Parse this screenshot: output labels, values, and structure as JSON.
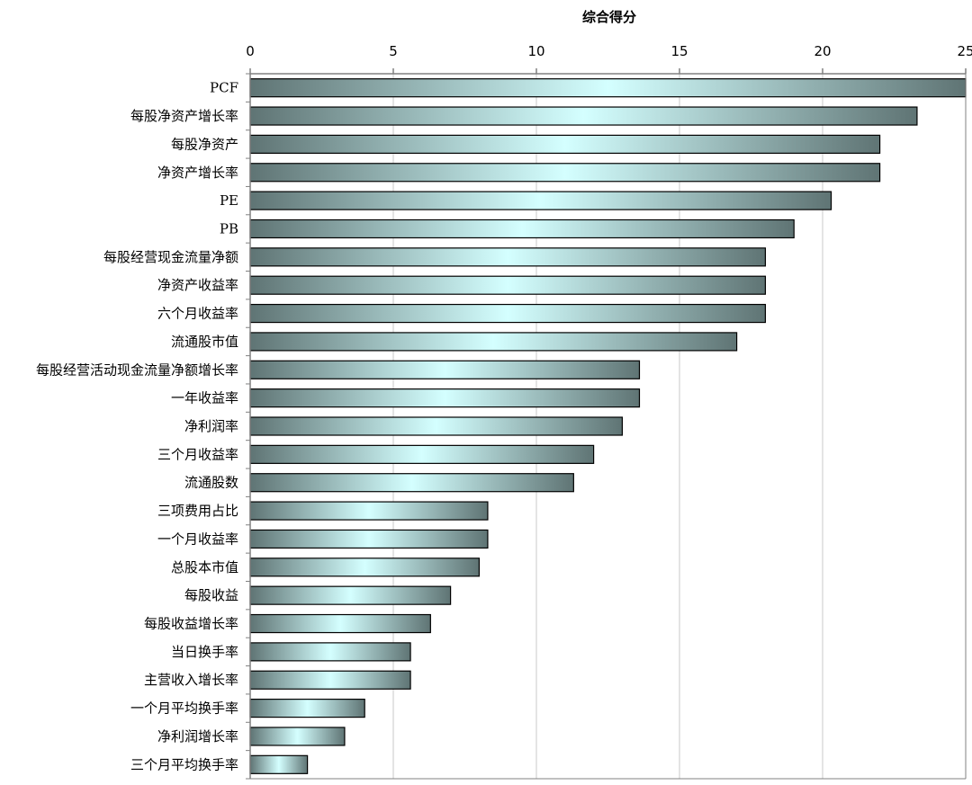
{
  "chart_data": {
    "type": "bar",
    "orientation": "horizontal",
    "title": "",
    "xlabel": "综合得分",
    "ylabel": "",
    "xlim": [
      0,
      25
    ],
    "ticks": [
      0,
      5,
      10,
      15,
      20,
      25
    ],
    "tick_labels": [
      "0",
      "5",
      "10",
      "15",
      "20",
      "25"
    ],
    "grid": "vertical",
    "axis_position": "top",
    "colors": {
      "bar_edge": "#000000",
      "bar_dark": "#5f7474",
      "bar_light": "#d4ffff",
      "grid": "#c8c8c8",
      "axis": "#808080"
    },
    "categories": [
      "PCF",
      "每股净资产增长率",
      "每股净资产",
      "净资产增长率",
      "PE",
      "PB",
      "每股经营现金流量净额",
      "净资产收益率",
      "六个月收益率",
      "流通股市值",
      "每股经营活动现金流量净额增长率",
      "一年收益率",
      "净利润率",
      "三个月收益率",
      "流通股数",
      "三项费用占比",
      "一个月收益率",
      "总股本市值",
      "每股收益",
      "每股收益增长率",
      "当日换手率",
      "主营收入增长率",
      "一个月平均换手率",
      "净利润增长率",
      "三个月平均换手率"
    ],
    "values": [
      25,
      23.3,
      22,
      22,
      20.3,
      19,
      18,
      18,
      18,
      17,
      13.6,
      13.6,
      13,
      12,
      11.3,
      8.3,
      8.3,
      8,
      7,
      6.3,
      5.6,
      5.6,
      4,
      3.3,
      2
    ]
  }
}
